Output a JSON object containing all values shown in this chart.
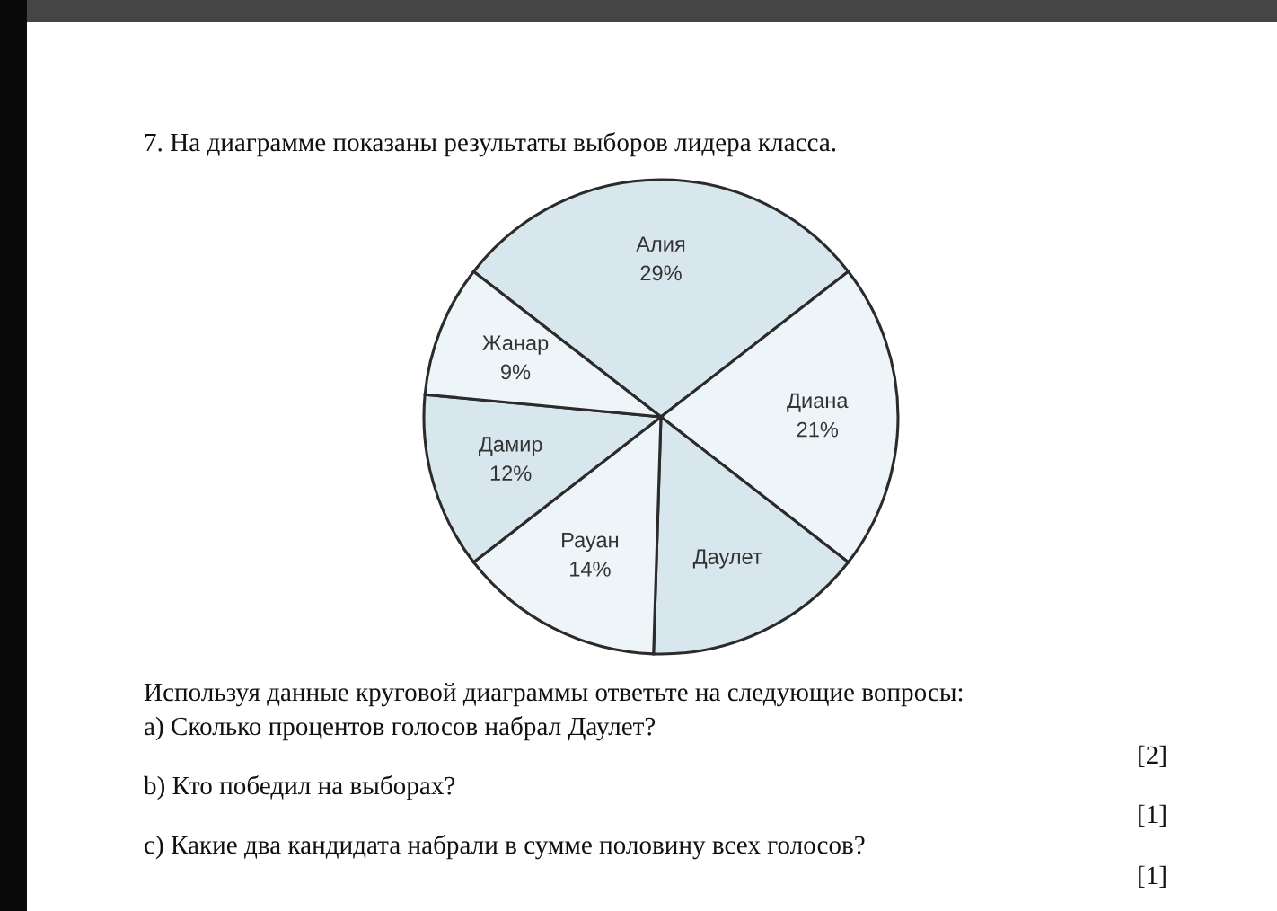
{
  "chart_data": {
    "type": "pie",
    "title": "7. На диаграмме показаны результаты выборов лидера класса.",
    "categories": [
      "Алия",
      "Диана",
      "Даулет",
      "Рауан",
      "Дамир",
      "Жанар"
    ],
    "values": [
      29,
      21,
      15,
      14,
      12,
      9
    ],
    "value_labels": [
      "29%",
      "21%",
      null,
      "14%",
      "12%",
      "9%"
    ],
    "colors": [
      "#d8e7ed",
      "#eef5f8",
      "#d8e7ed",
      "#eef5f8",
      "#d8e7ed",
      "#eef5f8"
    ],
    "annotations": [
      "Используя данные круговой диаграммы ответьте на следующие вопросы:",
      "a) Сколько процентов голосов набрал Даулет?",
      "[2]",
      "b) Кто победил на выборах?",
      "[1]",
      "c) Какие два кандидата набрали в сумме половину всех голосов?",
      "[1]"
    ]
  }
}
